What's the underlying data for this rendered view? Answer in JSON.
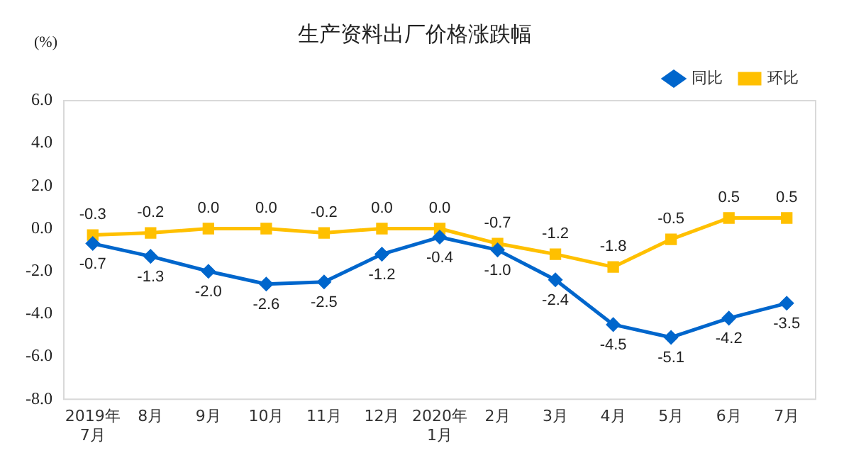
{
  "chart_data": {
    "type": "line",
    "title": "生产资料出厂价格涨跌幅",
    "ylabel": "(%)",
    "categories": [
      "2019年\n7月",
      "8月",
      "9月",
      "10月",
      "11月",
      "12月",
      "2020年\n1月",
      "2月",
      "3月",
      "4月",
      "5月",
      "6月",
      "7月"
    ],
    "series": [
      {
        "name": "同比",
        "color": "#0066cc",
        "marker": "diamond",
        "values": [
          -0.7,
          -1.3,
          -2.0,
          -2.6,
          -2.5,
          -1.2,
          -0.4,
          -1.0,
          -2.4,
          -4.5,
          -5.1,
          -4.2,
          -3.5
        ],
        "value_labels": [
          "-0.7",
          "-1.3",
          "-2.0",
          "-2.6",
          "-2.5",
          "-1.2",
          "-0.4",
          "-1.0",
          "-2.4",
          "-4.5",
          "-5.1",
          "-4.2",
          "-3.5"
        ]
      },
      {
        "name": "环比",
        "color": "#ffc000",
        "marker": "square",
        "values": [
          -0.3,
          -0.2,
          0.0,
          0.0,
          -0.2,
          0.0,
          0.0,
          -0.7,
          -1.2,
          -1.8,
          -0.5,
          0.5,
          0.5
        ],
        "value_labels": [
          "-0.3",
          "-0.2",
          "0.0",
          "0.0",
          "-0.2",
          "0.0",
          "0.0",
          "-0.7",
          "-1.2",
          "-1.8",
          "-0.5",
          "0.5",
          "0.5"
        ]
      }
    ],
    "ylim": [
      -8,
      6
    ],
    "yticks": [
      {
        "value": -8,
        "label": "-8.0"
      },
      {
        "value": -6,
        "label": "-6.0"
      },
      {
        "value": -4,
        "label": "-4.0"
      },
      {
        "value": -2,
        "label": "-2.0"
      },
      {
        "value": 0,
        "label": "0.0"
      },
      {
        "value": 2,
        "label": "2.0"
      },
      {
        "value": 4,
        "label": "4.0"
      },
      {
        "value": 6,
        "label": "6.0"
      }
    ],
    "grid": false,
    "legend": "top right"
  }
}
